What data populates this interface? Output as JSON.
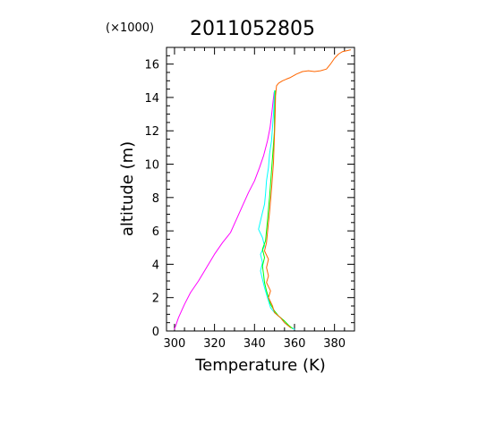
{
  "chart_data": {
    "type": "line",
    "title": "2011052805",
    "y_multiplier": "(×1000)",
    "xlabel": "Temperature (K)",
    "ylabel": "altitude (m)",
    "xlim": [
      296,
      390
    ],
    "ylim": [
      0,
      17
    ],
    "x_ticks": [
      300,
      320,
      340,
      360,
      380
    ],
    "y_ticks": [
      0,
      2,
      4,
      6,
      8,
      10,
      12,
      14,
      16
    ],
    "grid": false,
    "series": [
      {
        "color": "#ff00ff",
        "points": [
          [
            300,
            0.1
          ],
          [
            302,
            0.8
          ],
          [
            305,
            1.6
          ],
          [
            308,
            2.3
          ],
          [
            312,
            3.0
          ],
          [
            316,
            3.8
          ],
          [
            320,
            4.6
          ],
          [
            324,
            5.3
          ],
          [
            328,
            5.9
          ],
          [
            331,
            6.7
          ],
          [
            334,
            7.5
          ],
          [
            337,
            8.3
          ],
          [
            340,
            9.0
          ],
          [
            342.5,
            9.8
          ],
          [
            344.5,
            10.5
          ],
          [
            346.5,
            11.4
          ],
          [
            347.8,
            12.2
          ],
          [
            348.6,
            13.0
          ],
          [
            349.3,
            13.8
          ],
          [
            349.8,
            14.3
          ]
        ]
      },
      {
        "color": "#00ffff",
        "points": [
          [
            360,
            0.1
          ],
          [
            357,
            0.3
          ],
          [
            355,
            0.5
          ],
          [
            353,
            0.8
          ],
          [
            350,
            1.1
          ],
          [
            348,
            1.4
          ],
          [
            347,
            1.8
          ],
          [
            346,
            2.2
          ],
          [
            345,
            2.6
          ],
          [
            344,
            3.1
          ],
          [
            343,
            3.6
          ],
          [
            344,
            4.1
          ],
          [
            343,
            4.6
          ],
          [
            345,
            5.1
          ],
          [
            344,
            5.6
          ],
          [
            342,
            6.1
          ],
          [
            343,
            6.6
          ],
          [
            344,
            7.1
          ],
          [
            345,
            7.6
          ],
          [
            345.5,
            8.2
          ],
          [
            346,
            9.0
          ],
          [
            347,
            9.8
          ],
          [
            347.5,
            10.6
          ],
          [
            348.5,
            11.4
          ],
          [
            349,
            12.2
          ],
          [
            349.5,
            13.0
          ],
          [
            349.8,
            13.8
          ],
          [
            350,
            14.4
          ]
        ]
      },
      {
        "color": "#00ff00",
        "points": [
          [
            359,
            0.15
          ],
          [
            357,
            0.35
          ],
          [
            355,
            0.6
          ],
          [
            352,
            0.9
          ],
          [
            350,
            1.2
          ],
          [
            348,
            1.6
          ],
          [
            347,
            2.0
          ],
          [
            346,
            2.4
          ],
          [
            345,
            2.9
          ],
          [
            344.5,
            3.4
          ],
          [
            344,
            3.9
          ],
          [
            345,
            4.4
          ],
          [
            344,
            4.9
          ],
          [
            345.5,
            5.4
          ],
          [
            346,
            6.0
          ],
          [
            346.5,
            6.6
          ],
          [
            347,
            7.3
          ],
          [
            347.5,
            8.0
          ],
          [
            348,
            8.8
          ],
          [
            348.5,
            9.6
          ],
          [
            349,
            10.4
          ],
          [
            349.5,
            11.2
          ],
          [
            350,
            12.0
          ],
          [
            350,
            12.8
          ],
          [
            350.2,
            13.6
          ],
          [
            350.3,
            14.4
          ]
        ]
      },
      {
        "color": "#ff6600",
        "points": [
          [
            358,
            0.2
          ],
          [
            355,
            0.5
          ],
          [
            353,
            0.8
          ],
          [
            350,
            1.1
          ],
          [
            349,
            1.5
          ],
          [
            347,
            2.0
          ],
          [
            348,
            2.4
          ],
          [
            346,
            2.9
          ],
          [
            347,
            3.3
          ],
          [
            346,
            3.8
          ],
          [
            347,
            4.3
          ],
          [
            345,
            4.8
          ],
          [
            346,
            5.3
          ],
          [
            346.5,
            5.9
          ],
          [
            347,
            6.5
          ],
          [
            347.5,
            7.1
          ],
          [
            348,
            7.8
          ],
          [
            348.5,
            8.5
          ],
          [
            349,
            9.3
          ],
          [
            349.5,
            10.1
          ],
          [
            349.7,
            10.9
          ],
          [
            350,
            11.7
          ],
          [
            350.2,
            12.5
          ],
          [
            350.4,
            13.3
          ],
          [
            350.5,
            14.1
          ],
          [
            351,
            14.7
          ],
          [
            352,
            14.85
          ],
          [
            354,
            15.0
          ],
          [
            356,
            15.1
          ],
          [
            358,
            15.2
          ],
          [
            361,
            15.4
          ],
          [
            364,
            15.55
          ],
          [
            367,
            15.6
          ],
          [
            370,
            15.55
          ],
          [
            373,
            15.6
          ],
          [
            376,
            15.7
          ],
          [
            378,
            16.0
          ],
          [
            380,
            16.35
          ],
          [
            382,
            16.6
          ],
          [
            384,
            16.75
          ],
          [
            386,
            16.8
          ],
          [
            388,
            16.85
          ]
        ]
      }
    ]
  }
}
